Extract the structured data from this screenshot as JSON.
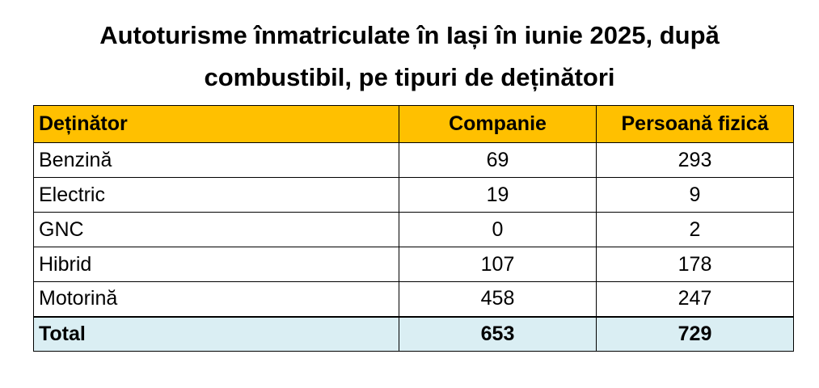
{
  "title_line1": "Autoturisme înmatriculate în Iași în iunie 2025, după",
  "title_line2": "combustibil, pe tipuri de deținători",
  "chart_data": {
    "type": "table",
    "columns": [
      "Deținător",
      "Companie",
      "Persoană fizică"
    ],
    "rows": [
      {
        "label": "Benzină",
        "companie": 69,
        "persoana_fizica": 293
      },
      {
        "label": "Electric",
        "companie": 19,
        "persoana_fizica": 9
      },
      {
        "label": "GNC",
        "companie": 0,
        "persoana_fizica": 2
      },
      {
        "label": "Hibrid",
        "companie": 107,
        "persoana_fizica": 178
      },
      {
        "label": "Motorină",
        "companie": 458,
        "persoana_fizica": 247
      }
    ],
    "total": {
      "label": "Total",
      "companie": 653,
      "persoana_fizica": 729
    }
  },
  "colors": {
    "header_bg": "#ffc000",
    "total_bg": "#daeef3"
  }
}
